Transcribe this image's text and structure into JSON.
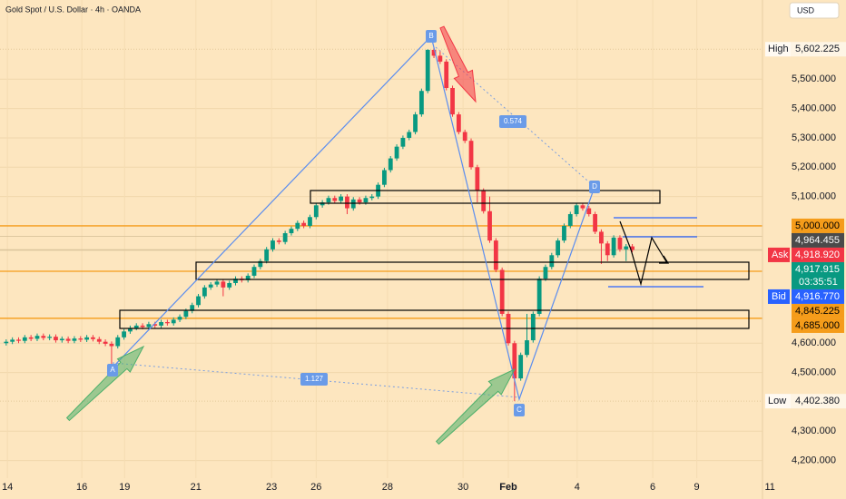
{
  "chart_data": {
    "type": "candlestick",
    "title": "Gold Spot / U.S. Dollar · 4h · OANDA",
    "currency": "USD",
    "colors": {
      "up": "#089981",
      "down": "#f23645"
    },
    "candles": [
      [
        4600,
        4613,
        4592,
        4605
      ],
      [
        4605,
        4620,
        4597,
        4612
      ],
      [
        4612,
        4620,
        4600,
        4608
      ],
      [
        4608,
        4628,
        4600,
        4620
      ],
      [
        4620,
        4628,
        4607,
        4615
      ],
      [
        4615,
        4633,
        4607,
        4625
      ],
      [
        4625,
        4633,
        4610,
        4618
      ],
      [
        4618,
        4630,
        4610,
        4622
      ],
      [
        4622,
        4630,
        4602,
        4610
      ],
      [
        4610,
        4623,
        4602,
        4615
      ],
      [
        4615,
        4623,
        4600,
        4608
      ],
      [
        4608,
        4624,
        4600,
        4616
      ],
      [
        4616,
        4624,
        4604,
        4612
      ],
      [
        4612,
        4628,
        4604,
        4620
      ],
      [
        4620,
        4628,
        4606,
        4614
      ],
      [
        4614,
        4622,
        4597,
        4605
      ],
      [
        4605,
        4613,
        4590,
        4598
      ],
      [
        4598,
        4606,
        4520,
        4590
      ],
      [
        4590,
        4628,
        4582,
        4620
      ],
      [
        4620,
        4648,
        4612,
        4640
      ],
      [
        4640,
        4660,
        4632,
        4652
      ],
      [
        4652,
        4668,
        4644,
        4660
      ],
      [
        4660,
        4668,
        4647,
        4655
      ],
      [
        4655,
        4673,
        4647,
        4665
      ],
      [
        4665,
        4673,
        4652,
        4660
      ],
      [
        4660,
        4680,
        4652,
        4672
      ],
      [
        4672,
        4680,
        4660,
        4668
      ],
      [
        4668,
        4688,
        4660,
        4680
      ],
      [
        4680,
        4698,
        4672,
        4690
      ],
      [
        4690,
        4718,
        4682,
        4710
      ],
      [
        4710,
        4738,
        4702,
        4730
      ],
      [
        4730,
        4768,
        4722,
        4760
      ],
      [
        4760,
        4798,
        4752,
        4790
      ],
      [
        4790,
        4808,
        4782,
        4800
      ],
      [
        4800,
        4818,
        4792,
        4810
      ],
      [
        4810,
        4818,
        4760,
        4790
      ],
      [
        4790,
        4813,
        4782,
        4805
      ],
      [
        4805,
        4828,
        4797,
        4820
      ],
      [
        4820,
        4828,
        4807,
        4815
      ],
      [
        4815,
        4838,
        4807,
        4830
      ],
      [
        4830,
        4868,
        4822,
        4860
      ],
      [
        4860,
        4888,
        4852,
        4880
      ],
      [
        4880,
        4928,
        4872,
        4920
      ],
      [
        4920,
        4958,
        4912,
        4950
      ],
      [
        4950,
        4958,
        4937,
        4945
      ],
      [
        4945,
        4983,
        4937,
        4975
      ],
      [
        4975,
        4998,
        4967,
        4990
      ],
      [
        4990,
        5018,
        4982,
        5010
      ],
      [
        5010,
        5018,
        4992,
        5000
      ],
      [
        5000,
        5038,
        4992,
        5030
      ],
      [
        5030,
        5078,
        5022,
        5070
      ],
      [
        5070,
        5088,
        5062,
        5080
      ],
      [
        5080,
        5103,
        5072,
        5095
      ],
      [
        5095,
        5103,
        5077,
        5085
      ],
      [
        5085,
        5108,
        5077,
        5100
      ],
      [
        5100,
        5108,
        5040,
        5060
      ],
      [
        5060,
        5098,
        5052,
        5090
      ],
      [
        5090,
        5098,
        5072,
        5080
      ],
      [
        5080,
        5103,
        5072,
        5095
      ],
      [
        5095,
        5108,
        5087,
        5100
      ],
      [
        5100,
        5148,
        5092,
        5140
      ],
      [
        5140,
        5198,
        5132,
        5190
      ],
      [
        5190,
        5238,
        5182,
        5230
      ],
      [
        5230,
        5278,
        5222,
        5270
      ],
      [
        5270,
        5308,
        5262,
        5300
      ],
      [
        5300,
        5328,
        5292,
        5320
      ],
      [
        5320,
        5388,
        5312,
        5380
      ],
      [
        5380,
        5468,
        5372,
        5460
      ],
      [
        5460,
        5602.225,
        5452,
        5600
      ],
      [
        5600,
        5608,
        5572,
        5580
      ],
      [
        5580,
        5598,
        5552,
        5560
      ],
      [
        5560,
        5568,
        5462,
        5470
      ],
      [
        5470,
        5478,
        5372,
        5380
      ],
      [
        5380,
        5388,
        5312,
        5320
      ],
      [
        5320,
        5328,
        5282,
        5290
      ],
      [
        5290,
        5298,
        5192,
        5200
      ],
      [
        5200,
        5208,
        5080,
        5120
      ],
      [
        5120,
        5128,
        5042,
        5050
      ],
      [
        5050,
        5100,
        4942,
        4950
      ],
      [
        4950,
        4958,
        4842,
        4850
      ],
      [
        4850,
        4858,
        4692,
        4700
      ],
      [
        4700,
        4708,
        4592,
        4600
      ],
      [
        4600,
        4608,
        4402.38,
        4480
      ],
      [
        4480,
        4568,
        4472,
        4560
      ],
      [
        4560,
        4700,
        4552,
        4610
      ],
      [
        4610,
        4708,
        4602,
        4700
      ],
      [
        4700,
        4828,
        4692,
        4820
      ],
      [
        4820,
        4868,
        4812,
        4860
      ],
      [
        4860,
        4908,
        4852,
        4900
      ],
      [
        4900,
        4958,
        4892,
        4950
      ],
      [
        4950,
        5008,
        4942,
        5000
      ],
      [
        5000,
        5048,
        4992,
        5040
      ],
      [
        5040,
        5078,
        5032,
        5070
      ],
      [
        5070,
        5078,
        5052,
        5060
      ],
      [
        5060,
        5068,
        5032,
        5040
      ],
      [
        5040,
        5048,
        4972,
        4980
      ],
      [
        4980,
        4988,
        4870,
        4940
      ],
      [
        4940,
        4948,
        4880,
        4900
      ],
      [
        4900,
        4968,
        4892,
        4960
      ],
      [
        4960,
        4968,
        4912,
        4920
      ],
      [
        4920,
        4938,
        4880,
        4930
      ],
      [
        4930,
        4938,
        4910,
        4917.915
      ]
    ],
    "xlim": [
      -1,
      122
    ],
    "xticks": [
      {
        "value": 0.2,
        "label": "14"
      },
      {
        "value": 12.2,
        "label": "16"
      },
      {
        "value": 19.1,
        "label": "19"
      },
      {
        "value": 30.6,
        "label": "21"
      },
      {
        "value": 42.8,
        "label": "23"
      },
      {
        "value": 50,
        "label": "26"
      },
      {
        "value": 61.5,
        "label": "28"
      },
      {
        "value": 73.7,
        "label": "30"
      },
      {
        "value": 81,
        "label": "Feb"
      },
      {
        "value": 92.1,
        "label": "4"
      },
      {
        "value": 104.3,
        "label": "6"
      },
      {
        "value": 111.4,
        "label": "9"
      },
      {
        "value": 123.2,
        "label": "11"
      }
    ],
    "ylim": [
      4140,
      5770
    ],
    "yticks": [
      {
        "value": 4200,
        "label": "4,200.000"
      },
      {
        "value": 4300,
        "label": "4,300.000"
      },
      {
        "value": 4500,
        "label": "4,500.000"
      },
      {
        "value": 4600,
        "label": "4,600.000"
      },
      {
        "value": 5100,
        "label": "5,100.000"
      },
      {
        "value": 5200,
        "label": "5,200.000"
      },
      {
        "value": 5300,
        "label": "5,300.000"
      },
      {
        "value": 5400,
        "label": "5,400.000"
      },
      {
        "value": 5500,
        "label": "5,500.000"
      }
    ],
    "grid": true,
    "high": {
      "label": "High",
      "price": {
        "value": 5602.225,
        "label": "5,602.225"
      }
    },
    "low": {
      "label": "Low",
      "price": {
        "value": 4402.38,
        "label": "4,402.380"
      }
    },
    "levels": [
      {
        "price": {
          "value": 5000,
          "label": "5,000.000"
        },
        "color": "#f59c1a",
        "text_color": "#000000",
        "line": true
      },
      {
        "price": {
          "value": 4964.455,
          "label": "4,964.455"
        },
        "color": "#4a4a4a",
        "text_color": "#ffffff",
        "line": false
      },
      {
        "tag": "Ask",
        "price": {
          "value": 4918.92,
          "label": "4,918.920"
        },
        "color": "#f23645",
        "text_color": "#ffffff",
        "line": false
      },
      {
        "price": {
          "value": 4917.915,
          "label": "4,917.915"
        },
        "countdown": "03:35:51",
        "color": "#089981",
        "text_color": "#ffffff",
        "line": false
      },
      {
        "tag": "Bid",
        "price": {
          "value": 4916.77,
          "label": "4,916.770"
        },
        "color": "#2962ff",
        "text_color": "#ffffff",
        "line": false
      },
      {
        "price": {
          "value": 4845.225,
          "label": "4,845.225"
        },
        "color": "#f59c1a",
        "text_color": "#000000",
        "line": true
      },
      {
        "price": {
          "value": 4685,
          "label": "4,685.000"
        },
        "color": "#f59c1a",
        "text_color": "#000000",
        "line": true
      }
    ],
    "pattern_labels": [
      "A",
      "B",
      "C",
      "D"
    ],
    "ratios": [
      0.574,
      1.127
    ]
  }
}
